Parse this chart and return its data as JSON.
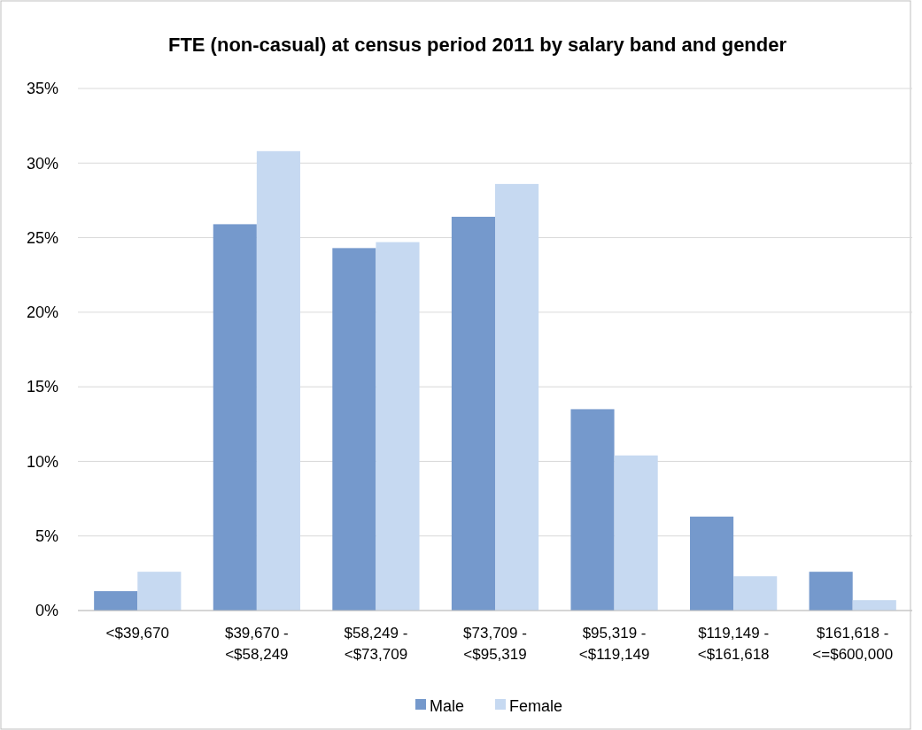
{
  "chart_data": {
    "type": "bar",
    "title": "FTE (non-casual) at census period 2011 by salary band and gender",
    "categories": [
      "<$39,670",
      "$39,670 - <$58,249",
      "$58,249 - <$73,709",
      "$73,709 - <$95,319",
      "$95,319 - <$119,149",
      "$119,149 - <$161,618",
      "$161,618 - <=$600,000"
    ],
    "series": [
      {
        "name": "Male",
        "color": "#7599cc",
        "values": [
          1.3,
          25.9,
          24.3,
          26.4,
          13.5,
          6.3,
          2.6
        ]
      },
      {
        "name": "Female",
        "color": "#c6d9f1",
        "values": [
          2.6,
          30.8,
          24.7,
          28.6,
          10.4,
          2.3,
          0.7
        ]
      }
    ],
    "ylim": [
      0,
      35
    ],
    "yticks": [
      {
        "value": 0,
        "label": "0%"
      },
      {
        "value": 5,
        "label": "5%"
      },
      {
        "value": 10,
        "label": "10%"
      },
      {
        "value": 15,
        "label": "15%"
      },
      {
        "value": 20,
        "label": "20%"
      },
      {
        "value": 25,
        "label": "25%"
      },
      {
        "value": 30,
        "label": "30%"
      },
      {
        "value": 35,
        "label": "35%"
      }
    ],
    "grid": "y",
    "legend": "bottom"
  }
}
